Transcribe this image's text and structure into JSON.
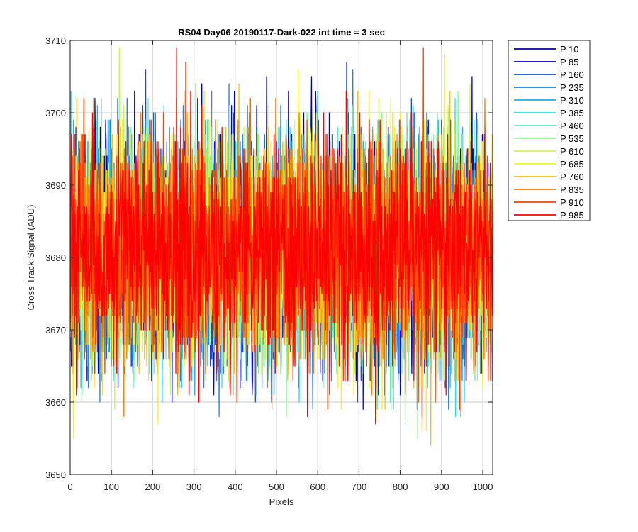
{
  "chart_data": {
    "type": "line",
    "title": "RS04 Day06 20190117-Dark-022 int time = 3 sec",
    "xlabel": "Pixels",
    "ylabel": "Cross Track Signal (ADU)",
    "xlim": [
      0,
      1024
    ],
    "ylim": [
      3650,
      3710
    ],
    "xticks": [
      0,
      100,
      200,
      300,
      400,
      500,
      600,
      700,
      800,
      900,
      1000
    ],
    "yticks": [
      3650,
      3660,
      3670,
      3680,
      3690,
      3700,
      3710
    ],
    "grid": true,
    "legend_position": "outside-top-right",
    "x": {
      "start": 1,
      "end": 1024,
      "step": 1
    },
    "noise": {
      "mean": 3681,
      "sd": 7.5,
      "min": 3653,
      "max": 3710
    },
    "series": [
      {
        "name": "P 10",
        "color": "#0000a8"
      },
      {
        "name": "P 85",
        "color": "#0000e6"
      },
      {
        "name": "P 160",
        "color": "#0f4fd8"
      },
      {
        "name": "P 235",
        "color": "#1e82e6"
      },
      {
        "name": "P 310",
        "color": "#1cb2ea"
      },
      {
        "name": "P 385",
        "color": "#24e0ea"
      },
      {
        "name": "P 460",
        "color": "#5af0c8"
      },
      {
        "name": "P 535",
        "color": "#90f690"
      },
      {
        "name": "P 610",
        "color": "#c8f650"
      },
      {
        "name": "P 685",
        "color": "#f6f61e"
      },
      {
        "name": "P 760",
        "color": "#fbbf13"
      },
      {
        "name": "P 835",
        "color": "#ff8000"
      },
      {
        "name": "P 910",
        "color": "#ff4000"
      },
      {
        "name": "P 985",
        "color": "#ff0000"
      }
    ]
  }
}
